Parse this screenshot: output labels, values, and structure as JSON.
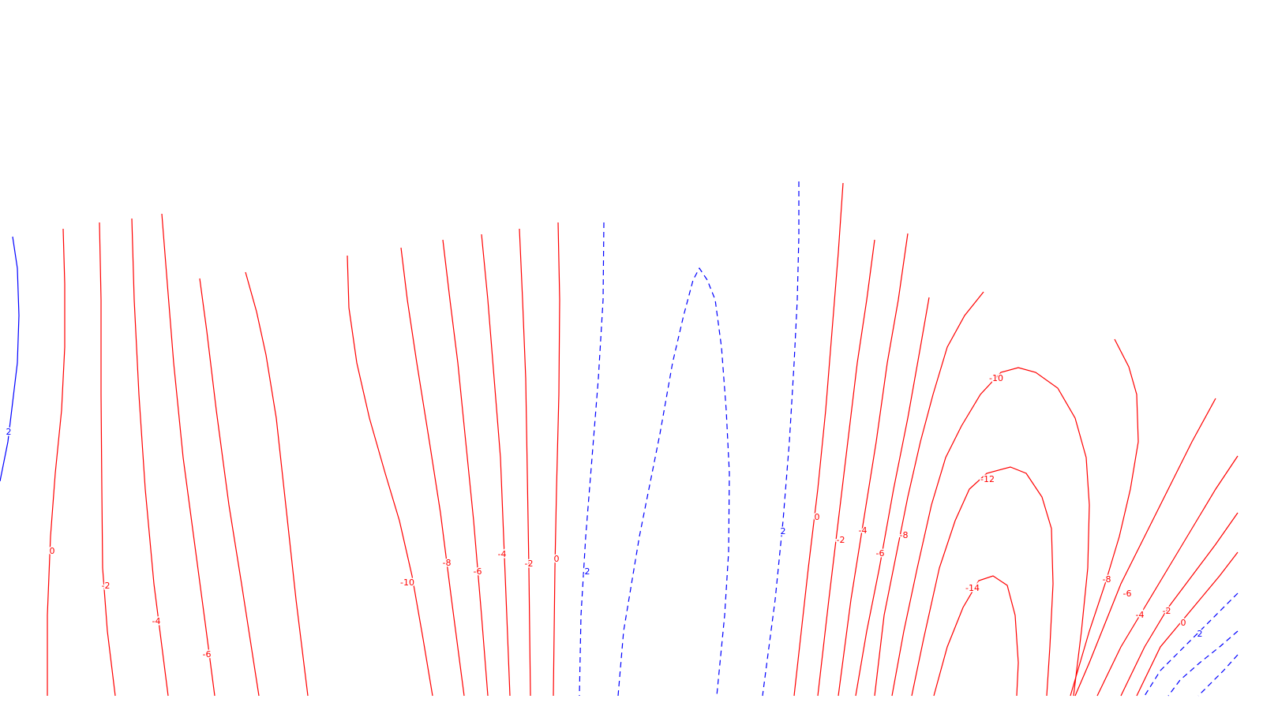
{
  "chart_data": {
    "type": "contour",
    "colors": {
      "negative": "#ff0000",
      "positive": "#0000ff"
    },
    "line_styles": {
      "negative": "solid",
      "zero": "solid",
      "positive": "dashed"
    },
    "grid": false,
    "legend": "none",
    "levels_shown": [
      -14,
      -12,
      -10,
      -8,
      -6,
      -4,
      -2,
      0,
      2
    ],
    "labels": [
      {
        "text": "2",
        "level": 2
      },
      {
        "text": "0",
        "level": 0
      },
      {
        "text": "-2",
        "level": -2
      },
      {
        "text": "-4",
        "level": -4
      },
      {
        "text": "-6",
        "level": -6
      },
      {
        "text": "-10",
        "level": -10
      },
      {
        "text": "-8",
        "level": -8
      },
      {
        "text": "-6",
        "level": -6
      },
      {
        "text": "-4",
        "level": -4
      },
      {
        "text": "-2",
        "level": -2
      },
      {
        "text": "0",
        "level": 0
      },
      {
        "text": "2",
        "level": 2
      },
      {
        "text": "2",
        "level": 2
      },
      {
        "text": "0",
        "level": 0
      },
      {
        "text": "-2",
        "level": -2
      },
      {
        "text": "-4",
        "level": -4
      },
      {
        "text": "-6",
        "level": -6
      },
      {
        "text": "-8",
        "level": -8
      },
      {
        "text": "-10",
        "level": -10
      },
      {
        "text": "-12",
        "level": -12
      },
      {
        "text": "-14",
        "level": -14
      },
      {
        "text": "-8",
        "level": -8
      },
      {
        "text": "-6",
        "level": -6
      },
      {
        "text": "-4",
        "level": -4
      },
      {
        "text": "-2",
        "level": -2
      },
      {
        "text": "0",
        "level": 0
      },
      {
        "text": "2",
        "level": 2
      }
    ]
  }
}
